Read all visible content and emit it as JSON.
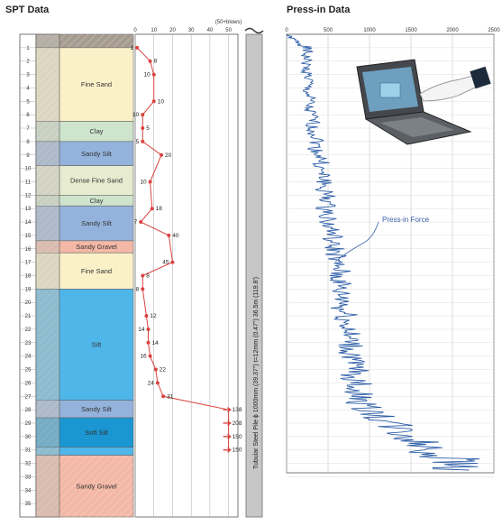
{
  "titles": {
    "spt": "SPT Data",
    "press": "Press-in Data"
  },
  "spt_top_note": "(50+blows)",
  "pile_label": "Tubular Steel Pile   ϕ 1000mm (39.37\")  t=12mm (0.47\")  36.5m (119.8')",
  "press_annotation": "Press-in Force",
  "layers": [
    {
      "name": "",
      "from": 0,
      "to": 1.0,
      "color": "#a79c90",
      "pattern": true
    },
    {
      "name": "Fine Sand",
      "from": 1.0,
      "to": 6.5,
      "color": "#fbf1c9"
    },
    {
      "name": "Clay",
      "from": 6.5,
      "to": 8.0,
      "color": "#cfe4cd"
    },
    {
      "name": "Sandy Silt",
      "from": 8.0,
      "to": 9.8,
      "color": "#94b3dc"
    },
    {
      "name": "Dense Fine Sand",
      "from": 9.8,
      "to": 12.0,
      "color": "#e7ecd0"
    },
    {
      "name": "Clay",
      "from": 12.0,
      "to": 12.8,
      "color": "#cfe4cd"
    },
    {
      "name": "Sandy Silt",
      "from": 12.8,
      "to": 15.4,
      "color": "#94b3dc"
    },
    {
      "name": "Sandy Gravel",
      "from": 15.4,
      "to": 16.3,
      "color": "#f3b8a6"
    },
    {
      "name": "Fine Sand",
      "from": 16.3,
      "to": 19.0,
      "color": "#fbf1c9"
    },
    {
      "name": "Silt",
      "from": 19.0,
      "to": 27.3,
      "color": "#4fb6ea"
    },
    {
      "name": "Sandy Silt",
      "from": 27.3,
      "to": 28.6,
      "color": "#94b3dc"
    },
    {
      "name": "Soft Silt",
      "from": 28.6,
      "to": 30.8,
      "color": "#1a96d2"
    },
    {
      "name": "",
      "from": 30.8,
      "to": 31.4,
      "color": "#4fb6ea"
    },
    {
      "name": "Sandy Gravel",
      "from": 31.4,
      "to": 36.0,
      "color": "#f3b8a6",
      "pattern": true
    }
  ],
  "chart_data": [
    {
      "type": "line",
      "title": "SPT Data",
      "x_ticks": [
        0,
        10,
        20,
        30,
        40,
        50
      ],
      "xlim": [
        0,
        55
      ],
      "ylim": [
        0,
        36
      ],
      "depth_ticks": [
        1,
        2,
        3,
        4,
        5,
        6,
        7,
        8,
        9,
        10,
        11,
        12,
        13,
        14,
        15,
        16,
        17,
        18,
        19,
        20,
        21,
        22,
        23,
        24,
        25,
        26,
        27,
        28,
        29,
        30,
        31,
        32,
        33,
        34,
        35
      ],
      "points": [
        {
          "depth": 1,
          "n": 1,
          "label": "1"
        },
        {
          "depth": 2,
          "n": 8,
          "label": "8"
        },
        {
          "depth": 3,
          "n": 10,
          "label": "10"
        },
        {
          "depth": 5,
          "n": 10,
          "label": "10"
        },
        {
          "depth": 6,
          "n": 4,
          "label": "10"
        },
        {
          "depth": 7,
          "n": 4,
          "label": "5"
        },
        {
          "depth": 8,
          "n": 4,
          "label": "5"
        },
        {
          "depth": 9,
          "n": 14,
          "label": "20"
        },
        {
          "depth": 11,
          "n": 8,
          "label": "10"
        },
        {
          "depth": 13,
          "n": 9,
          "label": "18"
        },
        {
          "depth": 14,
          "n": 3,
          "label": "7"
        },
        {
          "depth": 15,
          "n": 18,
          "label": "40"
        },
        {
          "depth": 17,
          "n": 20,
          "label": "45"
        },
        {
          "depth": 18,
          "n": 4,
          "label": "8"
        },
        {
          "depth": 19,
          "n": 4,
          "label": "8"
        },
        {
          "depth": 21,
          "n": 6,
          "label": "12"
        },
        {
          "depth": 22,
          "n": 7,
          "label": "14"
        },
        {
          "depth": 23,
          "n": 7,
          "label": "14"
        },
        {
          "depth": 24,
          "n": 8,
          "label": "16"
        },
        {
          "depth": 25,
          "n": 11,
          "label": "22"
        },
        {
          "depth": 26,
          "n": 12,
          "label": "24"
        },
        {
          "depth": 27,
          "n": 15,
          "label": "31"
        },
        {
          "depth": 28,
          "n": 50,
          "label": "138"
        },
        {
          "depth": 29,
          "n": 50,
          "label": "208"
        },
        {
          "depth": 30,
          "n": 50,
          "label": "150"
        },
        {
          "depth": 31,
          "n": 50,
          "label": "150"
        }
      ]
    },
    {
      "type": "line",
      "title": "Press-in Data",
      "x_ticks": [
        0,
        500,
        1000,
        1500,
        2000,
        2500
      ],
      "xlim": [
        0,
        2500
      ],
      "ylim": [
        0,
        36
      ],
      "series": [
        {
          "values": [
            [
              0.0,
              0
            ],
            [
              0.3,
              60
            ],
            [
              0.6,
              140
            ],
            [
              0.9,
              220
            ],
            [
              1.2,
              250
            ],
            [
              1.5,
              230
            ],
            [
              2.0,
              240
            ],
            [
              2.5,
              230
            ],
            [
              3.0,
              250
            ],
            [
              3.5,
              270
            ],
            [
              4.0,
              240
            ],
            [
              4.5,
              260
            ],
            [
              5.0,
              280
            ],
            [
              5.5,
              250
            ],
            [
              6.0,
              300
            ],
            [
              6.5,
              320
            ],
            [
              7.0,
              300
            ],
            [
              7.5,
              350
            ],
            [
              8.0,
              380
            ],
            [
              8.5,
              340
            ],
            [
              9.0,
              400
            ],
            [
              9.5,
              420
            ],
            [
              10.0,
              390
            ],
            [
              10.5,
              430
            ],
            [
              11.0,
              470
            ],
            [
              11.5,
              420
            ],
            [
              12.0,
              480
            ],
            [
              12.5,
              500
            ],
            [
              13.0,
              460
            ],
            [
              13.5,
              520
            ],
            [
              14.0,
              480
            ],
            [
              14.5,
              530
            ],
            [
              15.0,
              560
            ],
            [
              15.5,
              510
            ],
            [
              16.0,
              580
            ],
            [
              16.5,
              600
            ],
            [
              17.0,
              560
            ],
            [
              17.5,
              640
            ],
            [
              18.0,
              600
            ],
            [
              18.5,
              650
            ],
            [
              19.0,
              620
            ],
            [
              19.5,
              660
            ],
            [
              20.0,
              700
            ],
            [
              20.5,
              650
            ],
            [
              21.0,
              730
            ],
            [
              21.5,
              700
            ],
            [
              22.0,
              760
            ],
            [
              22.5,
              720
            ],
            [
              23.0,
              780
            ],
            [
              23.5,
              740
            ],
            [
              24.0,
              800
            ],
            [
              24.5,
              770
            ],
            [
              25.0,
              830
            ],
            [
              25.5,
              800
            ],
            [
              26.0,
              860
            ],
            [
              26.5,
              820
            ],
            [
              27.0,
              890
            ],
            [
              27.5,
              900
            ],
            [
              28.0,
              980
            ],
            [
              28.5,
              1100
            ],
            [
              29.0,
              1250
            ],
            [
              29.5,
              1350
            ],
            [
              30.0,
              1480
            ],
            [
              30.5,
              1600
            ],
            [
              31.0,
              1750
            ],
            [
              31.5,
              1900
            ],
            [
              32.0,
              2050
            ],
            [
              32.5,
              2200
            ]
          ]
        }
      ]
    }
  ]
}
